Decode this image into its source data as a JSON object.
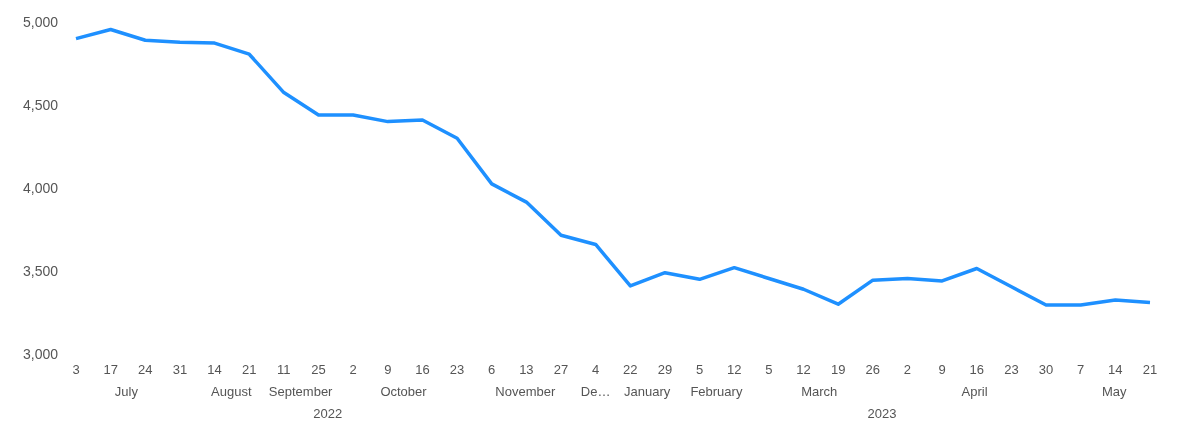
{
  "chart_data": {
    "type": "line",
    "categories": [
      "3",
      "17",
      "24",
      "31",
      "14",
      "21",
      "11",
      "25",
      "2",
      "9",
      "16",
      "23",
      "6",
      "13",
      "27",
      "4",
      "22",
      "29",
      "5",
      "12",
      "5",
      "12",
      "19",
      "26",
      "2",
      "9",
      "16",
      "23",
      "30",
      "7",
      "14",
      "21"
    ],
    "series": [
      {
        "color": "#1e90ff",
        "values": [
          4900,
          4955,
          4890,
          4878,
          4873,
          4806,
          4575,
          4440,
          4440,
          4400,
          4410,
          4300,
          4025,
          3915,
          3715,
          3660,
          3410,
          3490,
          3450,
          3520,
          3455,
          3390,
          3300,
          3445,
          3455,
          3440,
          3515,
          3405,
          3295,
          3295,
          3325,
          3310
        ]
      }
    ],
    "ylim": [
      3000,
      5000
    ],
    "yticks": [
      {
        "value": 3000,
        "label": "3,000"
      },
      {
        "value": 3500,
        "label": "3,500"
      },
      {
        "value": 4000,
        "label": "4,000"
      },
      {
        "value": 4500,
        "label": "4,500"
      },
      {
        "value": 5000,
        "label": "5,000"
      }
    ],
    "annotations": [
      "July",
      "August",
      "September",
      "October",
      "November",
      "De…",
      "January",
      "February",
      "March",
      "April",
      "May",
      "2022",
      "2023"
    ],
    "grid": false,
    "legend": false,
    "marker": "none",
    "line_style": "solid"
  }
}
